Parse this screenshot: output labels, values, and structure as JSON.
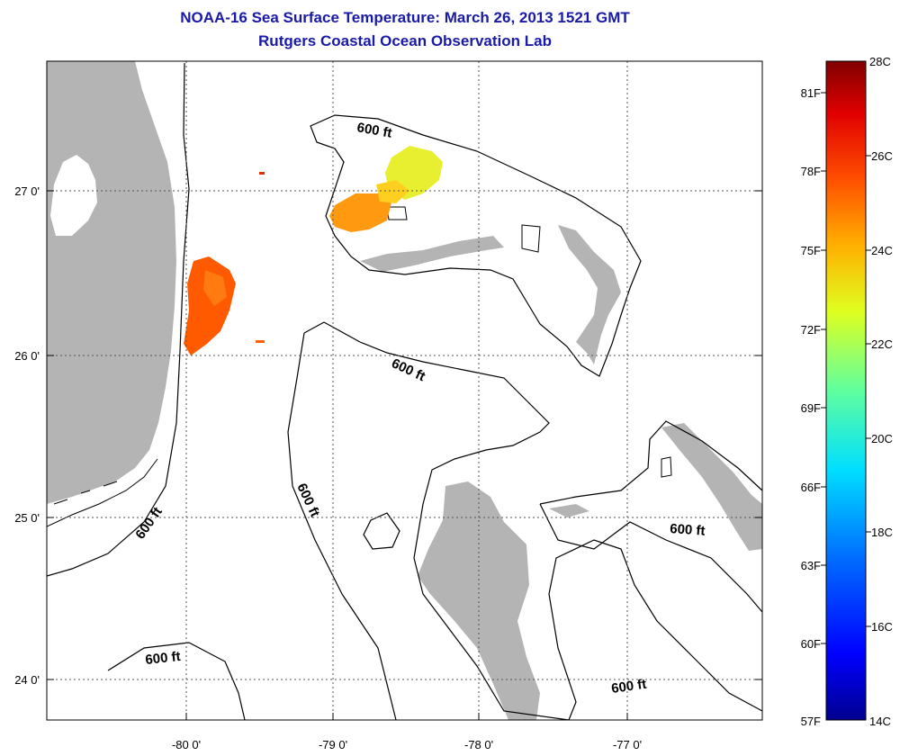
{
  "header": {
    "title_line_1": "NOAA-16 Sea Surface Temperature:  March 26, 2013 1521 GMT",
    "title_line_2": "Rutgers Coastal Ocean Observation Lab"
  },
  "map": {
    "longitude_ticks": [
      "-80 0'",
      "-79 0'",
      "-78 0'",
      "-77 0'"
    ],
    "latitude_ticks": [
      "27 0'",
      "26 0'",
      "25 0'",
      "24 0'"
    ],
    "contour_labels": [
      "600 ft",
      "600 ft",
      "600 ft",
      "600 ft",
      "600 ft",
      "600 ft",
      "600 ft"
    ],
    "colors": {
      "land": "#b4b4b4",
      "no_data": "#ffffff",
      "grid": "#555555"
    }
  },
  "colorbar": {
    "fahrenheit_labels": [
      "81F",
      "78F",
      "75F",
      "72F",
      "69F",
      "66F",
      "63F",
      "60F",
      "57F"
    ],
    "celsius_labels": [
      "28C",
      "26C",
      "24C",
      "22C",
      "20C",
      "18C",
      "16C",
      "14C"
    ],
    "range_c": [
      14,
      28
    ],
    "colormap": [
      "#00008f",
      "#0000ff",
      "#0060ff",
      "#00c0ff",
      "#20ffdf",
      "#80ff80",
      "#dfff20",
      "#ffc000",
      "#ff6000",
      "#ff0000",
      "#800000"
    ]
  }
}
